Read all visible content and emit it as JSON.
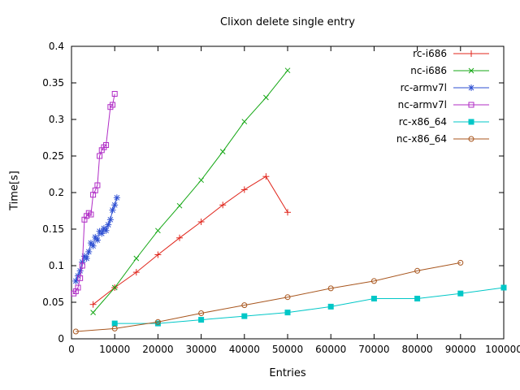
{
  "chart_data": {
    "type": "line",
    "title": "Clixon delete single entry",
    "xlabel": "Entries",
    "ylabel": "Time[s]",
    "xlim": [
      0,
      100000
    ],
    "ylim": [
      0,
      0.4
    ],
    "xticks": [
      0,
      10000,
      20000,
      30000,
      40000,
      50000,
      60000,
      70000,
      80000,
      90000,
      100000
    ],
    "yticks": [
      0,
      0.05,
      0.1,
      0.15,
      0.2,
      0.25,
      0.3,
      0.35,
      0.4
    ],
    "yticklabels": [
      "0",
      "0.05",
      "0.1",
      "0.15",
      "0.2",
      "0.25",
      "0.3",
      "0.35",
      "0.4"
    ],
    "grid": false,
    "legend_position": "top-right-inside",
    "series": [
      {
        "name": "rc-i686",
        "color": "#e0251b",
        "marker": "plus",
        "points": [
          [
            5000,
            0.047
          ],
          [
            10000,
            0.07
          ],
          [
            15000,
            0.091
          ],
          [
            20000,
            0.115
          ],
          [
            25000,
            0.138
          ],
          [
            30000,
            0.16
          ],
          [
            35000,
            0.183
          ],
          [
            40000,
            0.204
          ],
          [
            45000,
            0.222
          ],
          [
            50000,
            0.173
          ]
        ]
      },
      {
        "name": "nc-i686",
        "color": "#14a714",
        "marker": "x",
        "points": [
          [
            5000,
            0.036
          ],
          [
            10000,
            0.07
          ],
          [
            15000,
            0.11
          ],
          [
            20000,
            0.148
          ],
          [
            25000,
            0.182
          ],
          [
            30000,
            0.217
          ],
          [
            35000,
            0.256
          ],
          [
            40000,
            0.297
          ],
          [
            45000,
            0.33
          ],
          [
            50000,
            0.367
          ]
        ]
      },
      {
        "name": "rc-armv7l",
        "color": "#2d4fd2",
        "marker": "asterisk",
        "points": [
          [
            1000,
            0.079
          ],
          [
            1500,
            0.086
          ],
          [
            2000,
            0.093
          ],
          [
            2500,
            0.105
          ],
          [
            3000,
            0.113
          ],
          [
            3500,
            0.11
          ],
          [
            4000,
            0.119
          ],
          [
            4500,
            0.131
          ],
          [
            5000,
            0.127
          ],
          [
            5500,
            0.139
          ],
          [
            6000,
            0.135
          ],
          [
            6500,
            0.147
          ],
          [
            7000,
            0.144
          ],
          [
            7500,
            0.151
          ],
          [
            8000,
            0.148
          ],
          [
            8500,
            0.156
          ],
          [
            9000,
            0.163
          ],
          [
            9500,
            0.176
          ],
          [
            10000,
            0.183
          ],
          [
            10500,
            0.193
          ]
        ]
      },
      {
        "name": "nc-armv7l",
        "color": "#b02cc6",
        "marker": "square-open",
        "points": [
          [
            500,
            0.062
          ],
          [
            1000,
            0.065
          ],
          [
            1500,
            0.07
          ],
          [
            2000,
            0.083
          ],
          [
            2500,
            0.1
          ],
          [
            3000,
            0.163
          ],
          [
            3500,
            0.168
          ],
          [
            4000,
            0.172
          ],
          [
            4500,
            0.17
          ],
          [
            5000,
            0.197
          ],
          [
            5500,
            0.203
          ],
          [
            6000,
            0.21
          ],
          [
            6500,
            0.25
          ],
          [
            7000,
            0.258
          ],
          [
            7500,
            0.262
          ],
          [
            8000,
            0.265
          ],
          [
            9000,
            0.317
          ],
          [
            9500,
            0.32
          ],
          [
            10000,
            0.335
          ]
        ]
      },
      {
        "name": "rc-x86_64",
        "color": "#00c7c7",
        "marker": "square-filled",
        "points": [
          [
            10000,
            0.021
          ],
          [
            20000,
            0.021
          ],
          [
            30000,
            0.026
          ],
          [
            40000,
            0.031
          ],
          [
            50000,
            0.036
          ],
          [
            60000,
            0.044
          ],
          [
            70000,
            0.055
          ],
          [
            80000,
            0.055
          ],
          [
            90000,
            0.062
          ],
          [
            100000,
            0.07
          ]
        ]
      },
      {
        "name": "nc-x86_64",
        "color": "#a8561e",
        "marker": "circle-open",
        "points": [
          [
            1000,
            0.01
          ],
          [
            10000,
            0.014
          ],
          [
            20000,
            0.023
          ],
          [
            30000,
            0.035
          ],
          [
            40000,
            0.046
          ],
          [
            50000,
            0.057
          ],
          [
            60000,
            0.069
          ],
          [
            70000,
            0.079
          ],
          [
            80000,
            0.093
          ],
          [
            90000,
            0.104
          ]
        ]
      }
    ]
  }
}
